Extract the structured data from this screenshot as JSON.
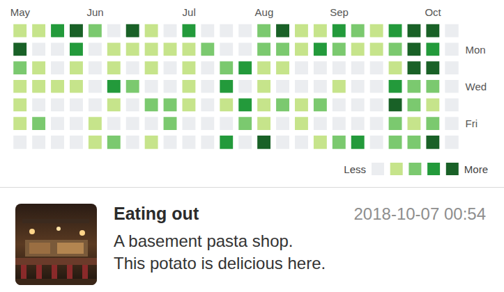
{
  "chart_data": {
    "type": "heatmap",
    "x_categories": [
      "May",
      null,
      null,
      null,
      "Jun",
      null,
      null,
      null,
      null,
      "Jul",
      null,
      null,
      null,
      "Aug",
      null,
      null,
      null,
      "Sep",
      null,
      null,
      null,
      null,
      "Oct",
      null
    ],
    "y_categories": [
      null,
      "Mon",
      null,
      "Wed",
      null,
      "Fri",
      null
    ],
    "cells": [
      [
        1,
        1,
        3,
        4,
        2,
        0,
        4,
        1,
        0,
        3,
        0,
        0,
        0,
        2,
        4,
        1,
        1,
        3,
        2,
        1,
        3,
        4,
        4,
        0
      ],
      [
        4,
        0,
        0,
        3,
        0,
        1,
        1,
        1,
        1,
        1,
        2,
        0,
        0,
        2,
        2,
        1,
        3,
        2,
        1,
        1,
        2,
        4,
        3,
        0
      ],
      [
        2,
        1,
        0,
        1,
        0,
        1,
        0,
        1,
        0,
        1,
        0,
        2,
        3,
        1,
        1,
        0,
        0,
        0,
        0,
        0,
        1,
        4,
        4,
        0
      ],
      [
        1,
        1,
        1,
        1,
        0,
        3,
        2,
        0,
        0,
        1,
        0,
        3,
        0,
        1,
        0,
        0,
        0,
        1,
        0,
        0,
        3,
        2,
        2,
        0
      ],
      [
        1,
        0,
        0,
        0,
        0,
        1,
        0,
        2,
        2,
        1,
        0,
        1,
        3,
        1,
        2,
        1,
        2,
        0,
        0,
        0,
        4,
        2,
        1,
        0
      ],
      [
        1,
        2,
        0,
        0,
        1,
        0,
        0,
        0,
        2,
        0,
        0,
        0,
        2,
        1,
        0,
        1,
        0,
        0,
        0,
        0,
        2,
        1,
        2,
        0
      ],
      [
        0,
        0,
        0,
        0,
        1,
        2,
        0,
        1,
        0,
        0,
        0,
        3,
        0,
        4,
        0,
        0,
        1,
        2,
        3,
        0,
        2,
        2,
        4,
        0
      ]
    ],
    "color_scale": {
      "levels": [
        0,
        1,
        2,
        3,
        4
      ],
      "colors": [
        "#ebedf0",
        "#c6e48b",
        "#7bc96f",
        "#239a3b",
        "#196127"
      ],
      "low_label": "Less",
      "high_label": "More"
    }
  },
  "entry": {
    "title": "Eating out",
    "timestamp": "2018-10-07 00:54",
    "lines": [
      "A basement pasta shop.",
      "This potato is delicious here."
    ]
  }
}
